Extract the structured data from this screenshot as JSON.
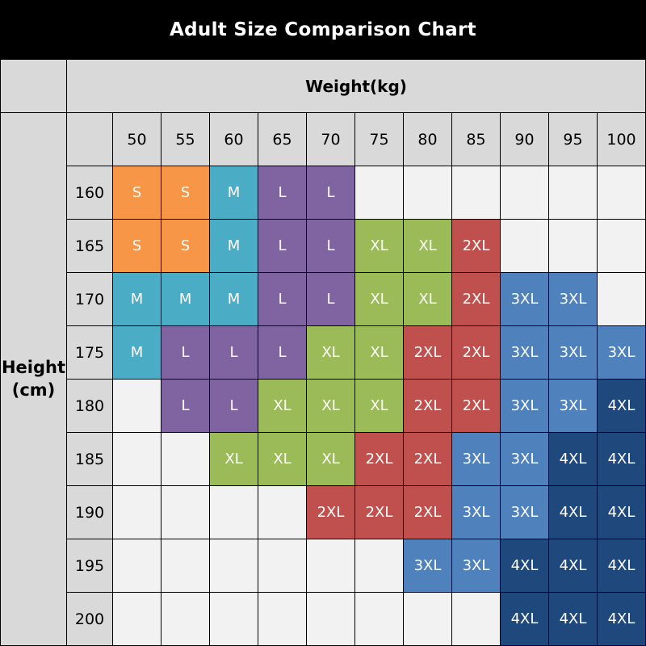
{
  "chart_data": {
    "type": "heatmap",
    "title": "Adult Size Comparison Chart",
    "xlabel": "Weight(kg)",
    "ylabel": "Height (cm)",
    "x": [
      50,
      55,
      60,
      65,
      70,
      75,
      80,
      85,
      90,
      95,
      100
    ],
    "y": [
      160,
      165,
      170,
      175,
      180,
      185,
      190,
      195,
      200
    ],
    "values": [
      [
        "S",
        "S",
        "M",
        "L",
        "L",
        "",
        "",
        "",
        "",
        "",
        ""
      ],
      [
        "S",
        "S",
        "M",
        "L",
        "L",
        "XL",
        "XL",
        "2XL",
        "",
        "",
        ""
      ],
      [
        "M",
        "M",
        "M",
        "L",
        "L",
        "XL",
        "XL",
        "2XL",
        "3XL",
        "3XL",
        ""
      ],
      [
        "M",
        "L",
        "L",
        "L",
        "XL",
        "XL",
        "2XL",
        "2XL",
        "3XL",
        "3XL",
        "3XL"
      ],
      [
        "",
        "L",
        "L",
        "XL",
        "XL",
        "XL",
        "2XL",
        "2XL",
        "3XL",
        "3XL",
        "4XL"
      ],
      [
        "",
        "",
        "XL",
        "XL",
        "XL",
        "2XL",
        "2XL",
        "3XL",
        "3XL",
        "4XL",
        "4XL"
      ],
      [
        "",
        "",
        "",
        "",
        "2XL",
        "2XL",
        "2XL",
        "3XL",
        "3XL",
        "4XL",
        "4XL"
      ],
      [
        "",
        "",
        "",
        "",
        "",
        "",
        "3XL",
        "3XL",
        "4XL",
        "4XL",
        "4XL"
      ],
      [
        "",
        "",
        "",
        "",
        "",
        "",
        "",
        "",
        "4XL",
        "4XL",
        "4XL"
      ]
    ],
    "size_colors": {
      "S": "#F79646",
      "M": "#4BACC6",
      "L": "#8064A2",
      "XL": "#9BBB59",
      "2XL": "#C0504D",
      "3XL": "#4F81BD",
      "4XL": "#1F497D"
    },
    "colors": {
      "background": "#000000",
      "title_text": "#FFFFFF",
      "header_bg": "#D9D9D9",
      "header_text": "#000000",
      "empty_cell_bg": "#F2F2F2",
      "cell_text": "#FFFFFF",
      "grid_border": "#000000"
    },
    "legend_position": "none",
    "grid": true
  }
}
